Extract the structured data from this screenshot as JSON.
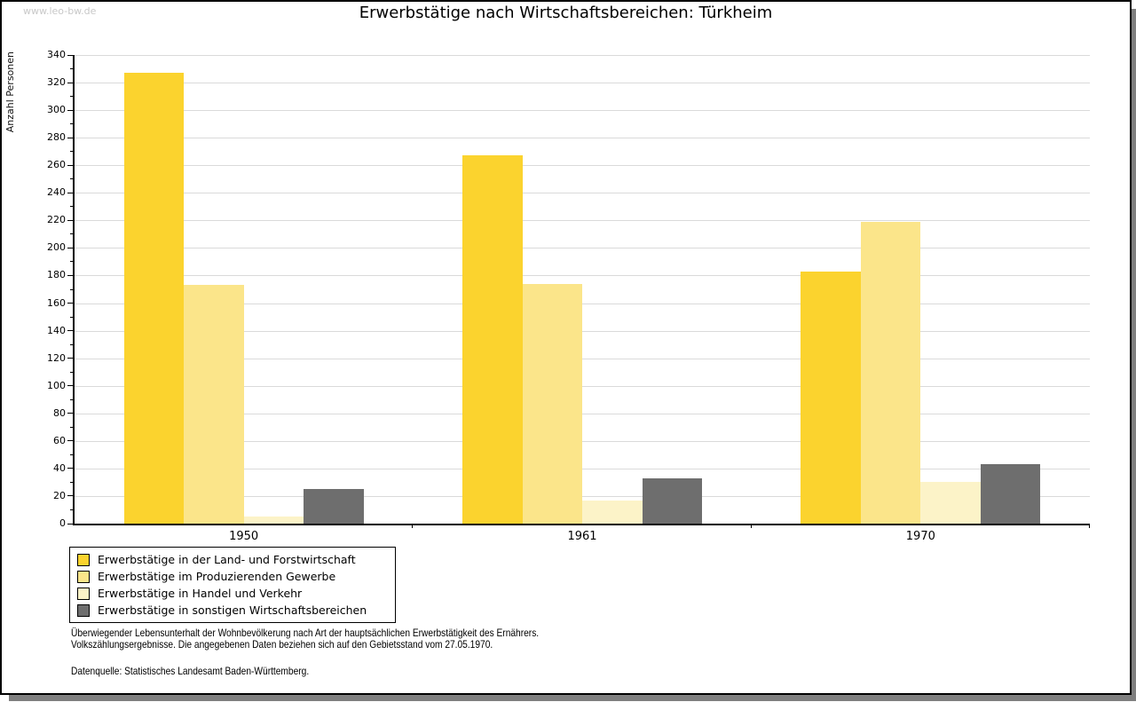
{
  "watermark": "www.leo-bw.de",
  "title": "Erwerbstätige nach Wirtschaftsbereichen: Türkheim",
  "chart_data": {
    "type": "bar",
    "title": "Erwerbstätige nach Wirtschaftsbereichen: Türkheim",
    "ylabel": "Anzahl Personen",
    "xlabel": "",
    "ylim": [
      0,
      340
    ],
    "ytick_step": 20,
    "grid": true,
    "legend_position": "bottom-left",
    "categories": [
      "1950",
      "1961",
      "1970"
    ],
    "series": [
      {
        "name": "Erwerbstätige in der Land- und Forstwirtschaft",
        "color": "#FBD32E",
        "values": [
          327,
          267,
          183
        ]
      },
      {
        "name": "Erwerbstätige im Produzierenden Gewerbe",
        "color": "#FBE58A",
        "values": [
          173,
          174,
          219
        ]
      },
      {
        "name": "Erwerbstätige in Handel und Verkehr",
        "color": "#FCF3C8",
        "values": [
          5,
          17,
          30
        ]
      },
      {
        "name": "Erwerbstätige in sonstigen Wirtschaftsbereichen",
        "color": "#6E6E6E",
        "values": [
          25,
          33,
          43
        ]
      }
    ]
  },
  "footer": {
    "line1": "Überwiegender Lebensunterhalt der Wohnbevölkerung nach Art der hauptsächlichen Erwerbstätigkeit des Ernährers.",
    "line2": "Volkszählungsergebnisse. Die angegebenen Daten beziehen sich auf den Gebietsstand vom 27.05.1970.",
    "source": "Datenquelle: Statistisches Landesamt Baden-Württemberg."
  }
}
